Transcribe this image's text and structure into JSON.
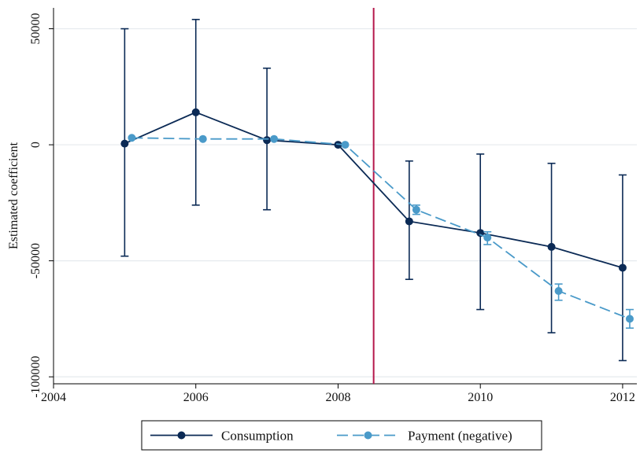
{
  "chart_data": {
    "type": "line",
    "title": "",
    "xlabel": "",
    "ylabel": "Estimated coefficient",
    "xlim": [
      2004,
      2012.2
    ],
    "ylim": [
      -103000,
      59000
    ],
    "x_ticks": [
      2004,
      2006,
      2008,
      2010,
      2012
    ],
    "y_ticks": [
      50000,
      0,
      -50000,
      -100000
    ],
    "y_tick_labels": [
      "50000",
      "0",
      "-50000",
      "-100000"
    ],
    "grid": "horizontal",
    "event_line": {
      "x": 2008.5,
      "color": "#b5174b"
    },
    "legend_placement": "bottom",
    "series": [
      {
        "name": "Consumption",
        "color": "#0b2a55",
        "style": "solid",
        "points": [
          {
            "x": 2005,
            "y": 500,
            "lo": -48000,
            "hi": 50000
          },
          {
            "x": 2006,
            "y": 14000,
            "lo": -26000,
            "hi": 54000
          },
          {
            "x": 2007,
            "y": 2000,
            "lo": -28000,
            "hi": 33000
          },
          {
            "x": 2008,
            "y": 0,
            "lo": null,
            "hi": null
          },
          {
            "x": 2009,
            "y": -33000,
            "lo": -58000,
            "hi": -7000
          },
          {
            "x": 2010,
            "y": -38000,
            "lo": -71000,
            "hi": -4000
          },
          {
            "x": 2011,
            "y": -44000,
            "lo": -81000,
            "hi": -8000
          },
          {
            "x": 2012,
            "y": -53000,
            "lo": -93000,
            "hi": -13000
          }
        ]
      },
      {
        "name": "Payment (negative)",
        "color": "#4a9ac9",
        "style": "dashed",
        "points": [
          {
            "x": 2005.1,
            "y": 3000,
            "lo": null,
            "hi": null
          },
          {
            "x": 2006.1,
            "y": 2500,
            "lo": null,
            "hi": null
          },
          {
            "x": 2007.1,
            "y": 2500,
            "lo": null,
            "hi": null
          },
          {
            "x": 2008.1,
            "y": 0,
            "lo": null,
            "hi": null
          },
          {
            "x": 2009.1,
            "y": -28000,
            "lo": -30000,
            "hi": -26000
          },
          {
            "x": 2010.1,
            "y": -40000,
            "lo": -43000,
            "hi": -37500
          },
          {
            "x": 2011.1,
            "y": -63000,
            "lo": -67000,
            "hi": -60000
          },
          {
            "x": 2012.1,
            "y": -75000,
            "lo": -79000,
            "hi": -71000
          }
        ]
      }
    ]
  }
}
